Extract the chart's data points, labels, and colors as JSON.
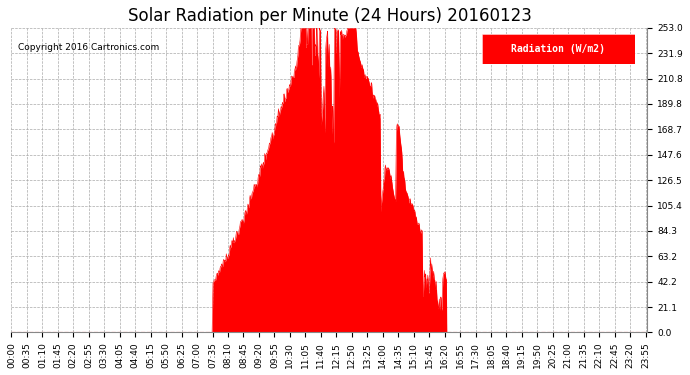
{
  "title": "Solar Radiation per Minute (24 Hours) 20160123",
  "copyright_text": "Copyright 2016 Cartronics.com",
  "ylabel": "Radiation (W/m2)",
  "background_color": "#ffffff",
  "plot_bg_color": "#ffffff",
  "fill_color": "#ff0000",
  "grid_color": "#aaaaaa",
  "dashed_zero_color": "#ff0000",
  "ylim": [
    0.0,
    253.0
  ],
  "yticks": [
    0.0,
    21.1,
    42.2,
    63.2,
    84.3,
    105.4,
    126.5,
    147.6,
    168.7,
    189.8,
    210.8,
    231.9,
    253.0
  ],
  "total_minutes": 1440,
  "sunrise_minute": 455,
  "sunset_minute": 985,
  "peak_minute": 770,
  "peak_value": 253.0,
  "title_fontsize": 12,
  "tick_fontsize": 6.5,
  "label_fontsize": 8,
  "xtick_step": 35
}
